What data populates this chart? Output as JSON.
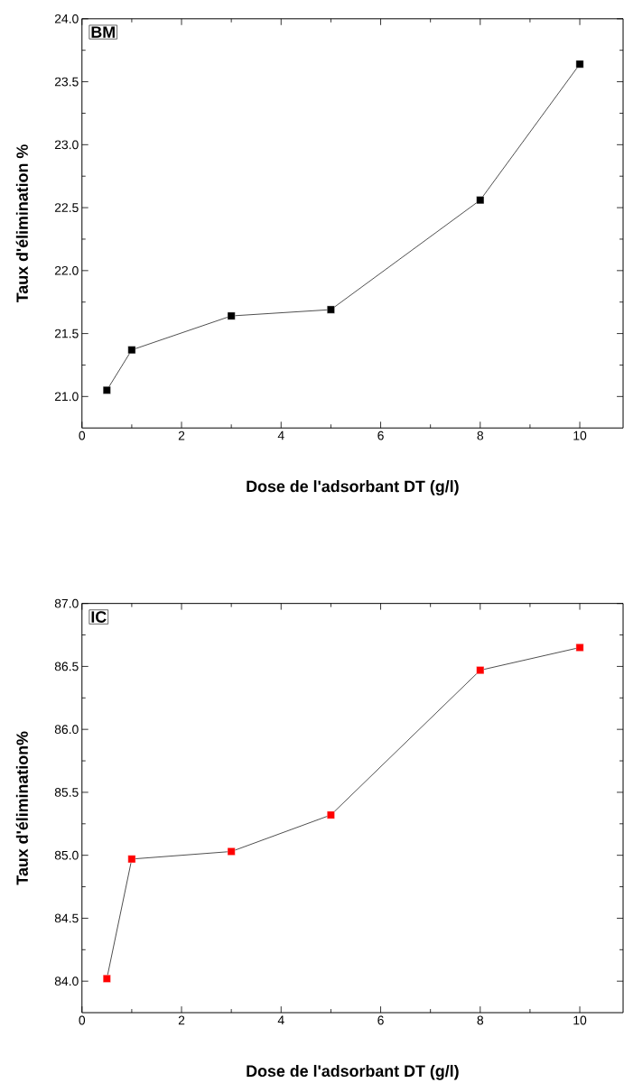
{
  "chart_data": [
    {
      "type": "line",
      "x": [
        0.5,
        1,
        3,
        5,
        8,
        10
      ],
      "series": [
        {
          "color": "#000000",
          "values": [
            21.05,
            21.37,
            21.64,
            21.69,
            22.56,
            23.64
          ]
        }
      ],
      "xlim": [
        0,
        10.87
      ],
      "ylim": [
        20.75,
        24.0
      ],
      "xticks": [
        0,
        2,
        4,
        6,
        8,
        10
      ],
      "yticks": [
        {
          "value": 21,
          "label": "21.0"
        },
        {
          "value": 21.5,
          "label": "21.5"
        },
        {
          "value": 22,
          "label": "22.0"
        },
        {
          "value": 22.5,
          "label": "22.5"
        },
        {
          "value": 23,
          "label": "23.0"
        },
        {
          "value": 23.5,
          "label": "23.5"
        },
        {
          "value": 24,
          "label": "24.0"
        }
      ],
      "xlabel": "Dose de l'adsorbant DT (g/l)",
      "ylabel": "Taux d'élimination %",
      "annotations": [
        "BM"
      ],
      "marker": "square",
      "line_style": "solid",
      "grid": false
    },
    {
      "type": "line",
      "x": [
        0.5,
        1,
        3,
        5,
        8,
        10
      ],
      "series": [
        {
          "color": "#ff0000",
          "values": [
            84.02,
            84.97,
            85.03,
            85.32,
            86.47,
            86.65
          ]
        }
      ],
      "xlim": [
        0,
        10.87
      ],
      "ylim": [
        83.75,
        87.0
      ],
      "xticks": [
        0,
        2,
        4,
        6,
        8,
        10
      ],
      "yticks": [
        {
          "value": 84,
          "label": "84.0"
        },
        {
          "value": 84.5,
          "label": "84.5"
        },
        {
          "value": 85,
          "label": "85.0"
        },
        {
          "value": 85.5,
          "label": "85.5"
        },
        {
          "value": 86,
          "label": "86.0"
        },
        {
          "value": 86.5,
          "label": "86.5"
        },
        {
          "value": 87,
          "label": "87.0"
        }
      ],
      "xlabel": "Dose de l'adsorbant DT (g/l)",
      "ylabel": "Taux d'élimination%",
      "annotations": [
        "IC"
      ],
      "marker": "square",
      "line_style": "solid",
      "grid": false
    }
  ]
}
